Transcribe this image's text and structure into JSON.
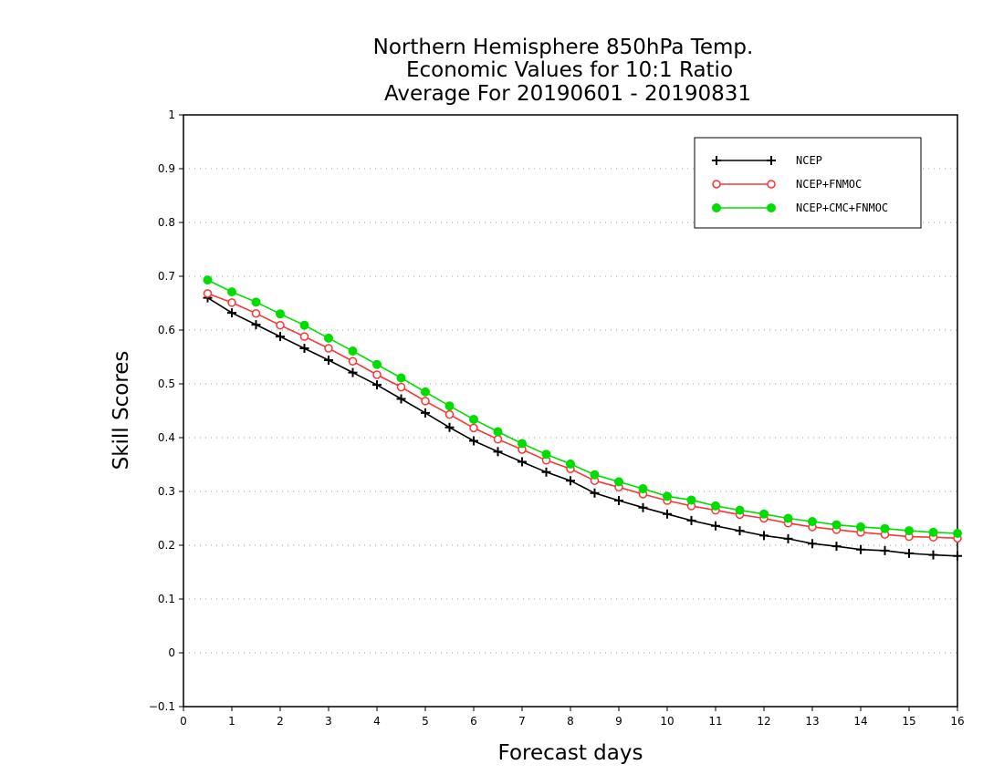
{
  "chart_data": {
    "type": "line",
    "title": [
      "Northern Hemisphere 850hPa Temp.",
      "Economic Values for 10:1 Ratio",
      "Average For 20190601 - 20190831"
    ],
    "xlabel": "Forecast days",
    "ylabel": "Skill Scores",
    "xlim": [
      0,
      16
    ],
    "ylim": [
      -0.1,
      1
    ],
    "xticks": [
      "0",
      "1",
      "2",
      "3",
      "4",
      "5",
      "6",
      "7",
      "8",
      "9",
      "10",
      "11",
      "12",
      "13",
      "14",
      "15",
      "16"
    ],
    "yticks": [
      "−0.1",
      "0",
      "0.1",
      "0.2",
      "0.3",
      "0.4",
      "0.5",
      "0.6",
      "0.7",
      "0.8",
      "0.9",
      "1"
    ],
    "grid": "horizontal dotted",
    "legend_position": "top-right",
    "x": [
      0.5,
      1,
      1.5,
      2,
      2.5,
      3,
      3.5,
      4,
      4.5,
      5,
      5.5,
      6,
      6.5,
      7,
      7.5,
      8,
      8.5,
      9,
      9.5,
      10,
      10.5,
      11,
      11.5,
      12,
      12.5,
      13,
      13.5,
      14,
      14.5,
      15,
      15.5,
      16
    ],
    "series": [
      {
        "name": "NCEP",
        "color": "#000000",
        "marker": "plus",
        "values": [
          0.66,
          0.632,
          0.61,
          0.588,
          0.566,
          0.544,
          0.521,
          0.498,
          0.472,
          0.446,
          0.419,
          0.394,
          0.374,
          0.355,
          0.336,
          0.32,
          0.297,
          0.283,
          0.27,
          0.258,
          0.246,
          0.236,
          0.227,
          0.218,
          0.212,
          0.203,
          0.198,
          0.192,
          0.19,
          0.185,
          0.182,
          0.18
        ]
      },
      {
        "name": "NCEP+FNMOC",
        "color": "#ff3333",
        "marker": "open-circle",
        "values": [
          0.668,
          0.651,
          0.631,
          0.609,
          0.588,
          0.566,
          0.542,
          0.517,
          0.494,
          0.468,
          0.443,
          0.418,
          0.397,
          0.378,
          0.358,
          0.342,
          0.32,
          0.308,
          0.295,
          0.283,
          0.273,
          0.265,
          0.257,
          0.25,
          0.241,
          0.234,
          0.229,
          0.224,
          0.22,
          0.216,
          0.215,
          0.213
        ]
      },
      {
        "name": "NCEP+CMC+FNMOC",
        "color": "#00dd00",
        "marker": "filled-circle",
        "values": [
          0.693,
          0.671,
          0.652,
          0.63,
          0.609,
          0.585,
          0.561,
          0.536,
          0.511,
          0.485,
          0.459,
          0.434,
          0.411,
          0.389,
          0.369,
          0.351,
          0.331,
          0.318,
          0.305,
          0.291,
          0.284,
          0.273,
          0.265,
          0.258,
          0.25,
          0.244,
          0.238,
          0.234,
          0.231,
          0.227,
          0.224,
          0.222
        ]
      }
    ]
  }
}
